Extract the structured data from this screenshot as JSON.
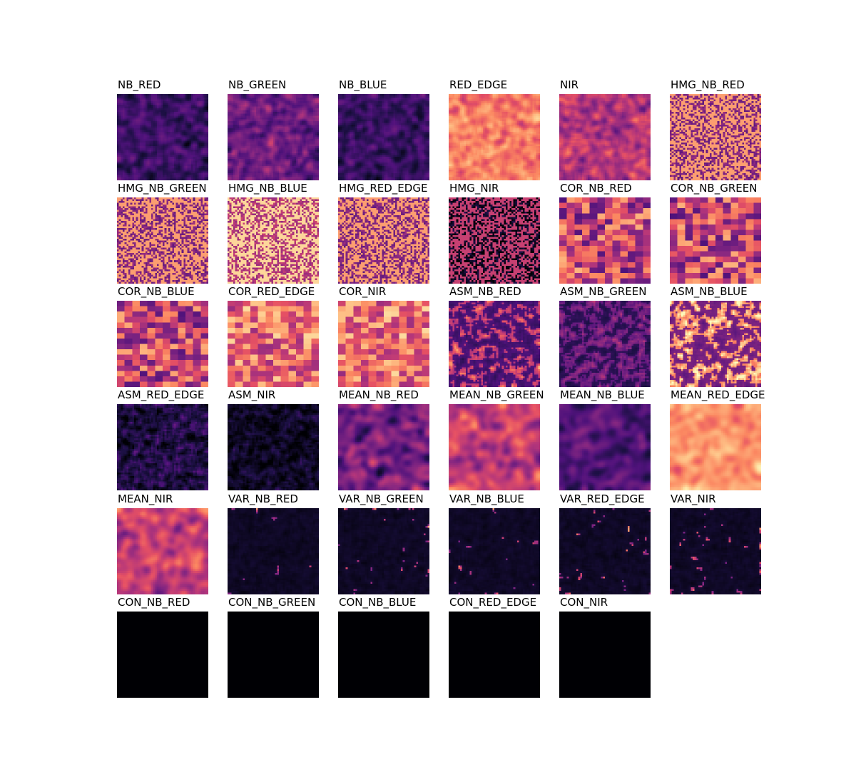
{
  "figure": {
    "colormap": "magma",
    "background": "#ffffff",
    "panels": [
      {
        "title": "NB_RED",
        "tone": "dark"
      },
      {
        "title": "NB_GREEN",
        "tone": "mid-dark"
      },
      {
        "title": "NB_BLUE",
        "tone": "dark"
      },
      {
        "title": "RED_EDGE",
        "tone": "bright"
      },
      {
        "title": "NIR",
        "tone": "mid"
      },
      {
        "title": "HMG_NB_RED",
        "tone": "bright-speckle"
      },
      {
        "title": "HMG_NB_GREEN",
        "tone": "bright-speckle"
      },
      {
        "title": "HMG_NB_BLUE",
        "tone": "very-bright-speckle"
      },
      {
        "title": "HMG_RED_EDGE",
        "tone": "bright-speckle"
      },
      {
        "title": "HMG_NIR",
        "tone": "mid-speckle"
      },
      {
        "title": "COR_NB_RED",
        "tone": "mid-blocky"
      },
      {
        "title": "COR_NB_GREEN",
        "tone": "mid-blocky"
      },
      {
        "title": "COR_NB_BLUE",
        "tone": "mid-blocky"
      },
      {
        "title": "COR_RED_EDGE",
        "tone": "bright-blocky"
      },
      {
        "title": "COR_NIR",
        "tone": "bright-blocky"
      },
      {
        "title": "ASM_NB_RED",
        "tone": "dark-blobs"
      },
      {
        "title": "ASM_NB_GREEN",
        "tone": "very-dark-blobs"
      },
      {
        "title": "ASM_NB_BLUE",
        "tone": "bright-blobs"
      },
      {
        "title": "ASM_RED_EDGE",
        "tone": "very-dark-specks"
      },
      {
        "title": "ASM_NIR",
        "tone": "near-black-specks"
      },
      {
        "title": "MEAN_NB_RED",
        "tone": "mid-dark-smooth"
      },
      {
        "title": "MEAN_NB_GREEN",
        "tone": "mid-smooth"
      },
      {
        "title": "MEAN_NB_BLUE",
        "tone": "dark-smooth"
      },
      {
        "title": "MEAN_RED_EDGE",
        "tone": "bright-smooth"
      },
      {
        "title": "MEAN_NIR",
        "tone": "mid-smooth"
      },
      {
        "title": "VAR_NB_RED",
        "tone": "near-black-sparse"
      },
      {
        "title": "VAR_NB_GREEN",
        "tone": "near-black-sparse"
      },
      {
        "title": "VAR_NB_BLUE",
        "tone": "near-black-sparse"
      },
      {
        "title": "VAR_RED_EDGE",
        "tone": "near-black-sparse"
      },
      {
        "title": "VAR_NIR",
        "tone": "near-black-sparse"
      },
      {
        "title": "CON_NB_RED",
        "tone": "black"
      },
      {
        "title": "CON_NB_GREEN",
        "tone": "black"
      },
      {
        "title": "CON_NB_BLUE",
        "tone": "black"
      },
      {
        "title": "CON_RED_EDGE",
        "tone": "black"
      },
      {
        "title": "CON_NIR",
        "tone": "black"
      }
    ]
  }
}
